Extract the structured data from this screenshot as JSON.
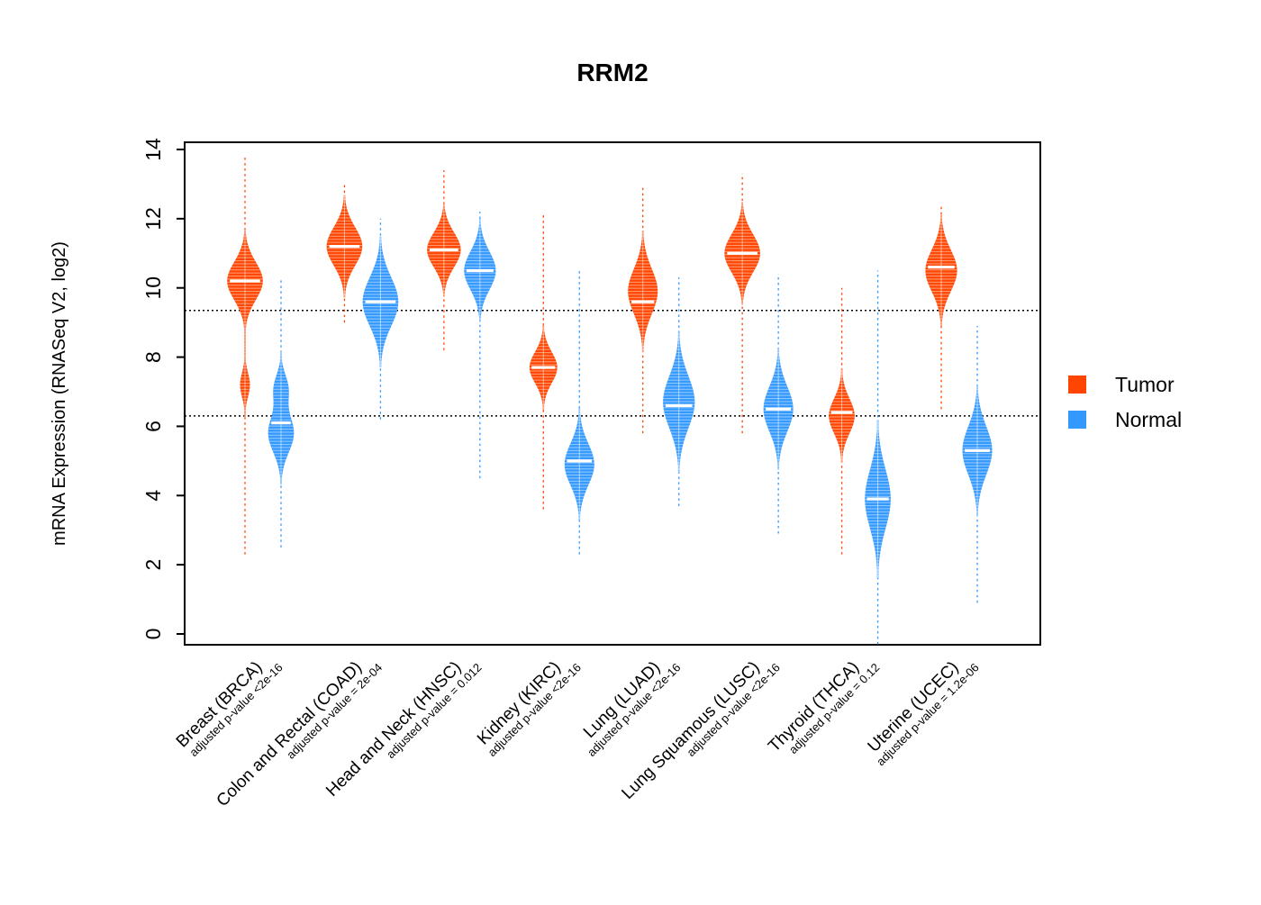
{
  "chart_data": {
    "type": "violin",
    "title": "RRM2",
    "ylabel": "mRNA Expression (RNASeq V2, log2)",
    "ylim": [
      0,
      14
    ],
    "yticks": [
      0,
      2,
      4,
      6,
      8,
      10,
      12,
      14
    ],
    "reference_lines": [
      6.3,
      9.35
    ],
    "legend": [
      {
        "label": "Tumor",
        "color": "#FF4500"
      },
      {
        "label": "Normal",
        "color": "#3399FF"
      }
    ],
    "groups": [
      {
        "label": "Breast (BRCA)",
        "pvalue": "adjusted p-value <2e-16",
        "tumor": {
          "min": 2.3,
          "max": 13.8,
          "median": 10.2,
          "lobes": [
            {
              "c": 10.2,
              "sd": 0.55,
              "w": 0.36
            },
            {
              "c": 7.2,
              "sd": 0.35,
              "w": 0.1
            }
          ]
        },
        "normal": {
          "min": 2.5,
          "max": 10.3,
          "median": 6.1,
          "lobes": [
            {
              "c": 5.8,
              "sd": 0.55,
              "w": 0.26
            },
            {
              "c": 7.1,
              "sd": 0.4,
              "w": 0.14
            }
          ]
        }
      },
      {
        "label": "Colon and Rectal (COAD)",
        "pvalue": "adjusted p-value = 2e-04",
        "tumor": {
          "min": 9.0,
          "max": 13.0,
          "median": 11.2,
          "lobes": [
            {
              "c": 11.2,
              "sd": 0.55,
              "w": 0.36
            }
          ]
        },
        "normal": {
          "min": 6.2,
          "max": 12.0,
          "median": 9.6,
          "lobes": [
            {
              "c": 9.6,
              "sd": 0.7,
              "w": 0.36
            }
          ]
        }
      },
      {
        "label": "Head and Neck (HNSC)",
        "pvalue": "adjusted p-value = 0.012",
        "tumor": {
          "min": 8.2,
          "max": 13.4,
          "median": 11.1,
          "lobes": [
            {
              "c": 11.1,
              "sd": 0.5,
              "w": 0.34
            }
          ]
        },
        "normal": {
          "min": 4.5,
          "max": 12.2,
          "median": 10.5,
          "lobes": [
            {
              "c": 10.5,
              "sd": 0.55,
              "w": 0.32
            }
          ]
        }
      },
      {
        "label": "Kidney (KIRC)",
        "pvalue": "adjusted p-value <2e-16",
        "tumor": {
          "min": 3.6,
          "max": 12.1,
          "median": 7.7,
          "lobes": [
            {
              "c": 7.7,
              "sd": 0.45,
              "w": 0.28
            }
          ]
        },
        "normal": {
          "min": 2.3,
          "max": 10.5,
          "median": 5.0,
          "lobes": [
            {
              "c": 4.9,
              "sd": 0.6,
              "w": 0.3
            }
          ]
        }
      },
      {
        "label": "Lung (LUAD)",
        "pvalue": "adjusted p-value <2e-16",
        "tumor": {
          "min": 5.8,
          "max": 12.9,
          "median": 9.6,
          "lobes": [
            {
              "c": 9.9,
              "sd": 0.65,
              "w": 0.3
            }
          ]
        },
        "normal": {
          "min": 3.7,
          "max": 10.3,
          "median": 6.6,
          "lobes": [
            {
              "c": 6.7,
              "sd": 0.75,
              "w": 0.32
            }
          ]
        }
      },
      {
        "label": "Lung Squamous (LUSC)",
        "pvalue": "adjusted p-value <2e-16",
        "tumor": {
          "min": 5.8,
          "max": 13.3,
          "median": 11.0,
          "lobes": [
            {
              "c": 11.0,
              "sd": 0.55,
              "w": 0.36
            }
          ]
        },
        "normal": {
          "min": 2.9,
          "max": 10.4,
          "median": 6.5,
          "lobes": [
            {
              "c": 6.5,
              "sd": 0.65,
              "w": 0.3
            }
          ]
        }
      },
      {
        "label": "Thyroid (THCA)",
        "pvalue": "adjusted p-value = 0.12",
        "tumor": {
          "min": 2.3,
          "max": 10.0,
          "median": 6.4,
          "lobes": [
            {
              "c": 6.3,
              "sd": 0.5,
              "w": 0.26
            }
          ]
        },
        "normal": {
          "min": -0.3,
          "max": 10.5,
          "median": 3.9,
          "lobes": [
            {
              "c": 3.9,
              "sd": 0.85,
              "w": 0.26
            }
          ]
        }
      },
      {
        "label": "Uterine (UCEC)",
        "pvalue": "adjusted p-value = 1.2e-06",
        "tumor": {
          "min": 6.5,
          "max": 12.4,
          "median": 10.6,
          "lobes": [
            {
              "c": 10.5,
              "sd": 0.6,
              "w": 0.32
            }
          ]
        },
        "normal": {
          "min": 0.9,
          "max": 8.9,
          "median": 5.3,
          "lobes": [
            {
              "c": 5.3,
              "sd": 0.7,
              "w": 0.3
            }
          ]
        }
      }
    ]
  }
}
